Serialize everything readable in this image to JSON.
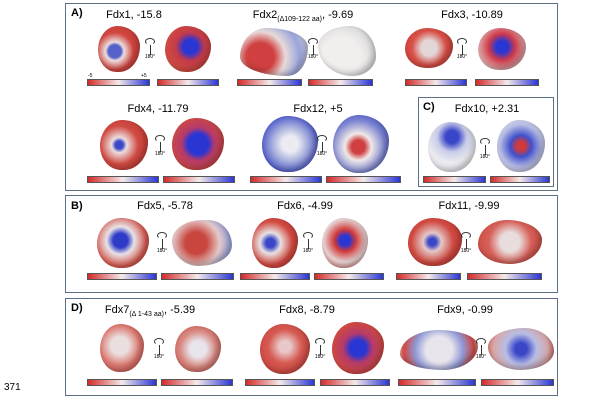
{
  "panels": {
    "A": {
      "label": "A)"
    },
    "B": {
      "label": "B)"
    },
    "C": {
      "label": "C)"
    },
    "D": {
      "label": "D)"
    }
  },
  "titles": {
    "fdx1": "Fdx1, -15.8",
    "fdx2_name": "Fdx2",
    "fdx2_sub": "(Δ109-122 aa)",
    "fdx2_value": ", -9.69",
    "fdx3": "Fdx3, -10.89",
    "fdx4": "Fdx4, -11.79",
    "fdx12": "Fdx12, +5",
    "fdx10": "Fdx10, +2.31",
    "fdx5": "Fdx5, -5.78",
    "fdx6": "Fdx6, -4.99",
    "fdx11": "Fdx11, -9.99",
    "fdx7_name": "Fdx7",
    "fdx7_sub": "(Δ 1-43 aa)",
    "fdx7_value": ", -5.39",
    "fdx8": "Fdx8, -8.79",
    "fdx9": "Fdx9, -0.99"
  },
  "rotation_label": "180°",
  "scale": {
    "min": "-5",
    "max": "+5"
  },
  "line_number": "371",
  "colors": {
    "negative": "#d42a2a",
    "neutral": "#f4eaea",
    "positive": "#2a36d4",
    "panel_border": "#5b6f86"
  }
}
